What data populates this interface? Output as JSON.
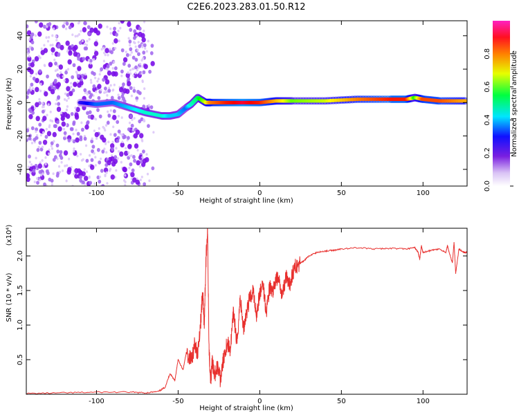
{
  "title": "C2E6.2023.283.01.50.R12",
  "chart_data": [
    {
      "type": "heatmap",
      "xlabel": "Height of straight line (km)",
      "ylabel": "Frequency (Hz)",
      "xlim": [
        -143,
        127
      ],
      "ylim": [
        -50,
        49
      ],
      "xticks": [
        -100,
        -50,
        0,
        50,
        100
      ],
      "yticks": [
        -40,
        -20,
        0,
        20,
        40
      ],
      "colorbar": {
        "label": "Normalized spectral amplitude",
        "range": [
          0.0,
          1.0
        ],
        "ticks": [
          0.0,
          0.2,
          0.4,
          0.6,
          0.8
        ],
        "colormap": [
          "#ffffff",
          "#8a2be2",
          "#0000ff",
          "#00ffff",
          "#00ff00",
          "#ffff00",
          "#ff8000",
          "#ff0000",
          "#ff00ff"
        ]
      },
      "ridge": {
        "x": [
          -110,
          -100,
          -90,
          -80,
          -70,
          -60,
          -55,
          -50,
          -45,
          -42,
          -38,
          -33,
          -30,
          -20,
          -10,
          0,
          10,
          20,
          40,
          60,
          80,
          90,
          95,
          100,
          110,
          127
        ],
        "frequency": [
          0,
          -1,
          0,
          -3,
          -6,
          -8,
          -8,
          -7,
          -3,
          -1,
          3,
          0,
          0,
          0,
          0,
          0,
          1,
          1,
          1,
          2,
          2,
          2,
          3,
          2,
          1,
          1
        ],
        "amplitude": [
          0.2,
          0.3,
          0.3,
          0.35,
          0.4,
          0.4,
          0.35,
          0.35,
          0.3,
          0.4,
          0.45,
          0.6,
          0.75,
          0.85,
          0.9,
          0.85,
          0.7,
          0.55,
          0.6,
          0.75,
          0.85,
          0.85,
          0.5,
          0.8,
          0.8,
          0.7
        ]
      }
    },
    {
      "type": "line",
      "xlabel": "Height of straight line (km)",
      "ylabel": "SNR (10 * v/v)",
      "yscale_label": "(x10⁴)",
      "xlim": [
        -143,
        127
      ],
      "ylim": [
        0,
        2.4
      ],
      "xticks": [
        -100,
        -50,
        0,
        50,
        100
      ],
      "yticks": [
        0.5,
        1.0,
        1.5,
        2.0
      ],
      "color": "#e8302e",
      "series": [
        {
          "x": [
            -143,
            -120,
            -100,
            -80,
            -70,
            -62,
            -58,
            -55,
            -52,
            -50,
            -47,
            -45,
            -42,
            -40,
            -38,
            -36,
            -35,
            -34,
            -33,
            -32,
            -31,
            -30,
            -29,
            -28,
            -26,
            -24,
            -22,
            -20,
            -18,
            -16,
            -14,
            -12,
            -10,
            -8,
            -6,
            -4,
            -2,
            0,
            2,
            4,
            6,
            8,
            10,
            12,
            14,
            16,
            18,
            20,
            22,
            25,
            28,
            30,
            35,
            40,
            45,
            50,
            60,
            70,
            80,
            90,
            95,
            97,
            98,
            99,
            100,
            105,
            110,
            114,
            115,
            116,
            118,
            119,
            120,
            122,
            125,
            127
          ],
          "values": [
            0.01,
            0.02,
            0.03,
            0.03,
            0.02,
            0.04,
            0.1,
            0.3,
            0.2,
            0.5,
            0.35,
            0.6,
            0.5,
            0.7,
            0.6,
            1.1,
            1.5,
            1.0,
            1.9,
            2.4,
            0.6,
            0.2,
            0.5,
            0.25,
            0.4,
            0.2,
            0.55,
            0.75,
            0.65,
            1.2,
            0.7,
            1.4,
            0.95,
            1.2,
            1.4,
            1.5,
            1.15,
            1.45,
            1.6,
            1.2,
            1.55,
            1.45,
            1.7,
            1.6,
            1.45,
            1.7,
            1.55,
            1.75,
            1.85,
            1.9,
            1.95,
            2.0,
            2.05,
            2.07,
            2.08,
            2.1,
            2.12,
            2.1,
            2.11,
            2.1,
            2.12,
            2.05,
            1.95,
            2.15,
            2.05,
            2.08,
            2.1,
            2.05,
            2.15,
            2.05,
            1.9,
            2.2,
            1.75,
            2.1,
            2.05,
            2.05
          ]
        }
      ]
    }
  ]
}
